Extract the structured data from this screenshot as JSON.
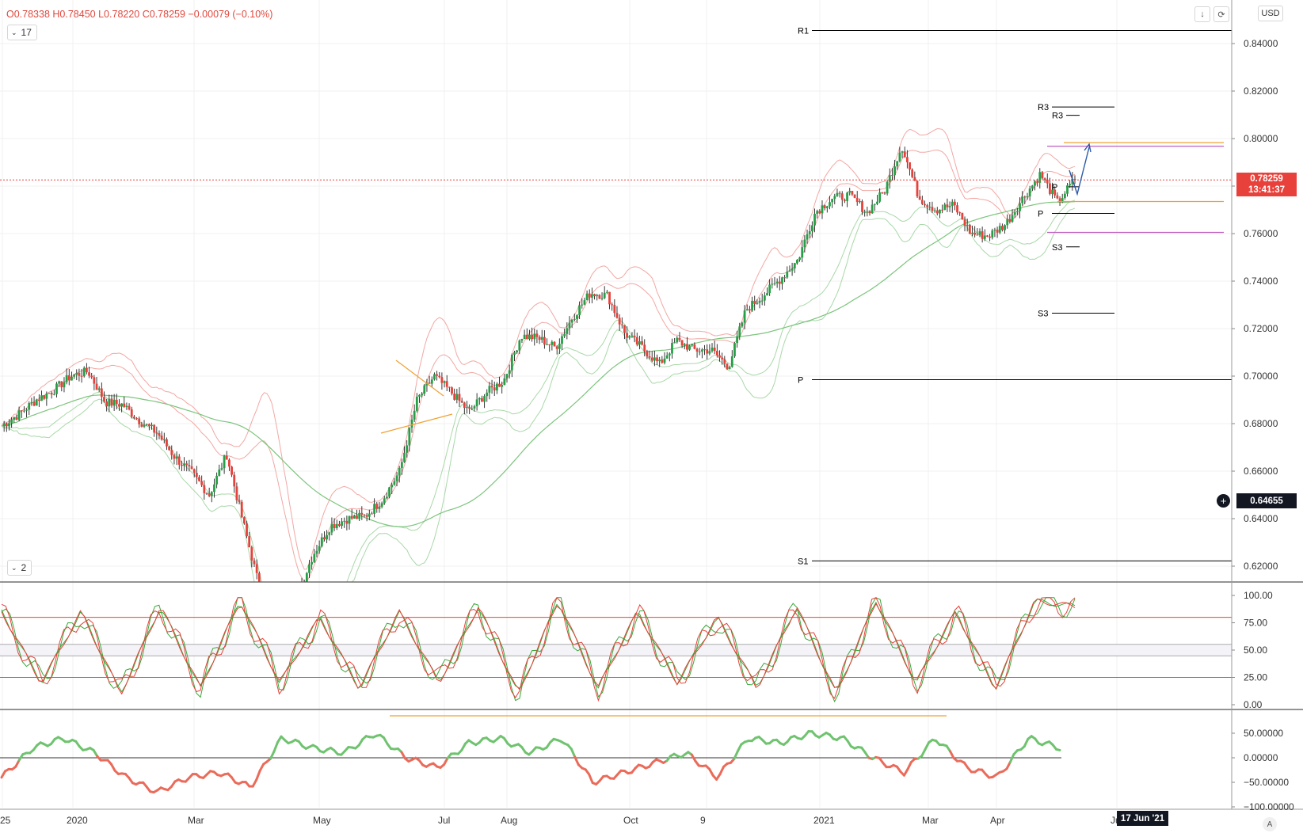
{
  "header": {
    "open": "O0.78338",
    "high": "H0.78450",
    "low": "L0.78220",
    "close": "C0.78259",
    "change": "−0.00079 (−0.10%)",
    "indicator1_badge": "17",
    "indicator2_badge": "2",
    "currency": "USD",
    "download_icon": "download-icon",
    "refresh_icon": "refresh-icon",
    "auto_scale": "A"
  },
  "colors": {
    "up": "#26a046",
    "down": "#e8403a",
    "bb_outer": "#f2a7a3",
    "bb_inner": "#a8d8a8",
    "ma_long": "#7cc47c",
    "pivot_line": "#000000",
    "orange": "#f0a030",
    "purple": "#c060c0",
    "forecast": "#2a5aa8",
    "stoch_fast": "#3aa83a",
    "stoch_slow": "#e8403a",
    "osc_pos": "#6fc36f",
    "osc_neg": "#ea6b5a"
  },
  "price_axis": {
    "last_price": "0.78259",
    "countdown": "13:41:37",
    "cross_price": "0.64655",
    "ticks": [
      "0.84000",
      "0.82000",
      "0.80000",
      "0.78000",
      "0.76000",
      "0.74000",
      "0.72000",
      "0.70000",
      "0.68000",
      "0.66000",
      "0.64000",
      "0.62000"
    ]
  },
  "x_axis": {
    "labels": [
      "25",
      "2020",
      "Mar",
      "May",
      "Jul",
      "Aug",
      "Oct",
      "9",
      "2021",
      "Mar",
      "Apr",
      "Jun"
    ],
    "crosshair_date": "17 Jun '21"
  },
  "pivot_labels": {
    "yearly": [
      "R1",
      "P",
      "S1"
    ],
    "quarterly": [
      "R3",
      "P",
      "S3"
    ],
    "monthly": [
      "R3",
      "P",
      "S3"
    ]
  },
  "chart_data": [
    {
      "type": "candlestick",
      "title": "",
      "ylim": [
        0.6,
        0.85
      ],
      "x_labels": [
        "25",
        "2020",
        "Mar",
        "May",
        "Jul",
        "Aug",
        "Oct",
        "9",
        "2021",
        "Mar",
        "Apr",
        "Jun"
      ],
      "last_close": 0.78259,
      "pivot_levels": {
        "yearly": {
          "R1": 0.8455,
          "P": 0.6985,
          "S1": 0.6222
        },
        "quarterly": {
          "R3": 0.8133,
          "P": 0.7685,
          "S3": 0.7265
        },
        "monthly": {
          "R3": 0.8098,
          "P": 0.7797,
          "S3": 0.7544
        }
      },
      "close_path": [
        0.679,
        0.684,
        0.69,
        0.694,
        0.7,
        0.702,
        0.689,
        0.688,
        0.681,
        0.676,
        0.666,
        0.659,
        0.65,
        0.667,
        0.637,
        0.608,
        0.598,
        0.606,
        0.625,
        0.637,
        0.64,
        0.641,
        0.648,
        0.66,
        0.69,
        0.7,
        0.693,
        0.685,
        0.693,
        0.698,
        0.717,
        0.716,
        0.712,
        0.725,
        0.735,
        0.734,
        0.718,
        0.712,
        0.705,
        0.715,
        0.711,
        0.711,
        0.704,
        0.728,
        0.734,
        0.741,
        0.749,
        0.769,
        0.775,
        0.776,
        0.769,
        0.778,
        0.797,
        0.775,
        0.77,
        0.772,
        0.76,
        0.759,
        0.764,
        0.775,
        0.785,
        0.773,
        0.783
      ]
    },
    {
      "type": "line",
      "title": "",
      "ylim": [
        0,
        100
      ],
      "ticks": [
        "100.00",
        "75.00",
        "50.00",
        "25.00",
        "0.00"
      ],
      "levels": [
        80,
        55,
        45,
        25
      ],
      "series": [
        {
          "values": [
            85,
            20,
            85,
            10,
            90,
            15,
            95,
            20,
            80,
            15,
            85,
            20,
            90,
            10,
            95,
            15,
            85,
            20,
            80,
            15,
            90,
            10,
            95,
            20,
            85,
            15,
            95,
            90
          ]
        }
      ]
    },
    {
      "type": "line",
      "title": "",
      "ylim": [
        -100,
        70
      ],
      "ticks": [
        "50.00000",
        "0.00000",
        "−50.00000",
        "−100.00000"
      ],
      "series": [
        {
          "values": [
            -40,
            20,
            40,
            10,
            -40,
            -70,
            -40,
            -30,
            -60,
            40,
            20,
            10,
            50,
            0,
            -20,
            30,
            40,
            10,
            40,
            -50,
            -30,
            -10,
            10,
            -40,
            40,
            30,
            50,
            40,
            0,
            -30,
            40,
            -20,
            -40,
            40,
            20
          ]
        }
      ]
    }
  ]
}
